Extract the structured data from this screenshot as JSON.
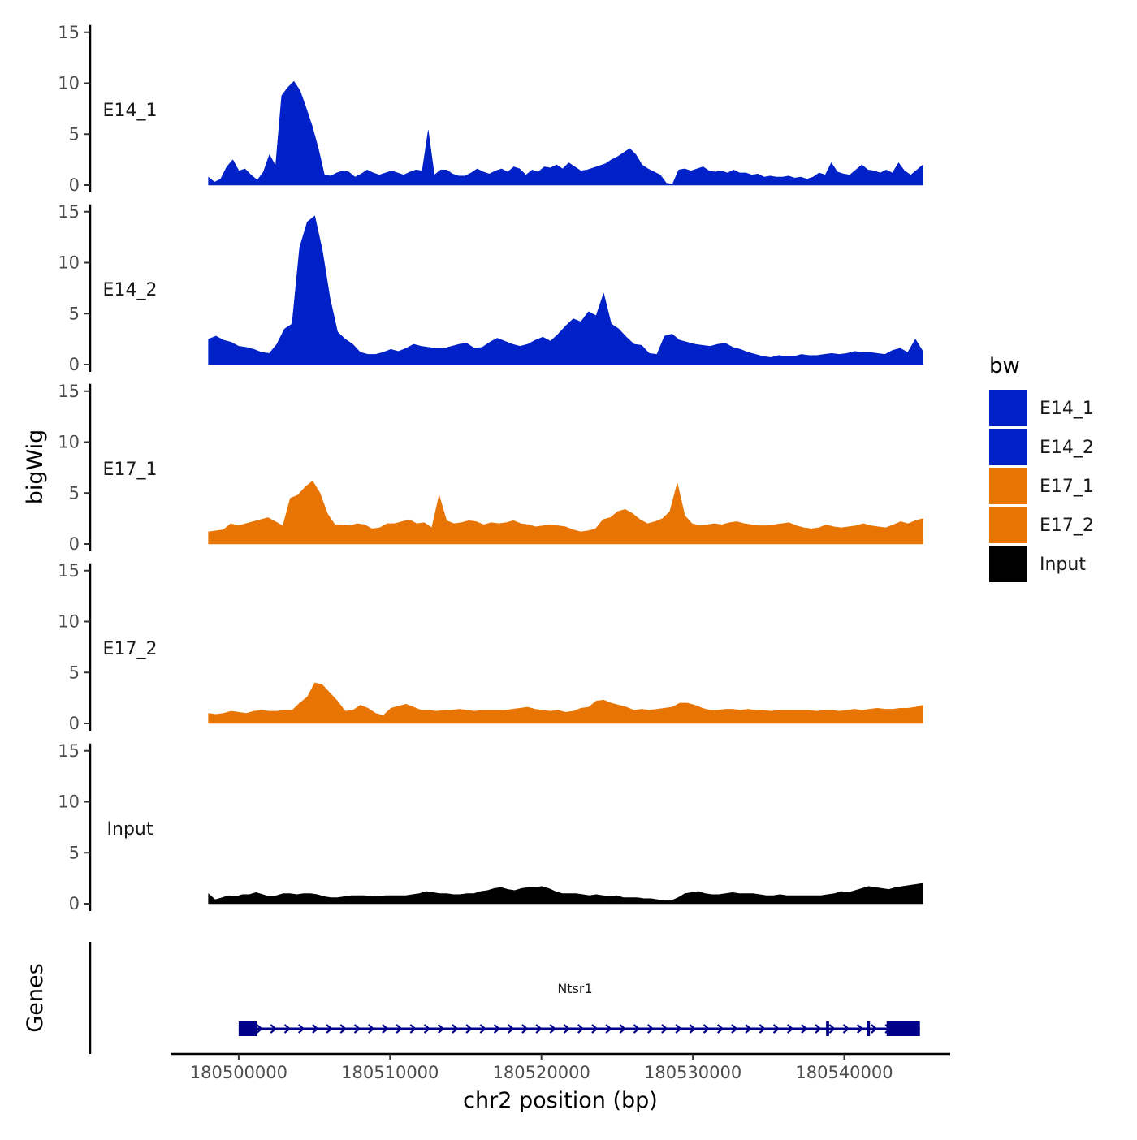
{
  "chart_data": {
    "type": "area",
    "y_axis_title": "bigWig",
    "genes_axis_title": "Genes",
    "x_axis_title": "chr2 position (bp)",
    "xlim": [
      180495500,
      180547000
    ],
    "x_ticks": [
      180500000,
      180510000,
      180520000,
      180530000,
      180540000
    ],
    "x_tick_labels": [
      "180500000",
      "180510000",
      "180520000",
      "180530000",
      "180540000"
    ],
    "ylim": [
      0,
      15
    ],
    "y_ticks": [
      0,
      5,
      10,
      15
    ],
    "y_tick_labels": [
      "0",
      "5",
      "10",
      "15"
    ],
    "data_start": 180498000,
    "bin_size": 500,
    "legend": {
      "title": "bw",
      "entries": [
        {
          "label": "E14_1",
          "color": "#0020C8"
        },
        {
          "label": "E14_2",
          "color": "#0020C8"
        },
        {
          "label": "E17_1",
          "color": "#E87503"
        },
        {
          "label": "E17_2",
          "color": "#E87503"
        },
        {
          "label": "Input",
          "color": "#000000"
        }
      ]
    },
    "series": [
      {
        "name": "E14_1",
        "color": "#0020C8",
        "values": [
          0.8,
          0.3,
          0.6,
          1.8,
          2.5,
          1.4,
          1.6,
          1.0,
          0.5,
          1.3,
          3.0,
          1.9,
          8.8,
          9.6,
          10.2,
          9.3,
          7.6,
          5.8,
          3.6,
          1.0,
          0.9,
          1.2,
          1.4,
          1.3,
          0.8,
          1.1,
          1.5,
          1.2,
          1.0,
          1.2,
          1.4,
          1.2,
          1.0,
          1.3,
          1.5,
          1.4,
          5.4,
          1.0,
          1.5,
          1.5,
          1.1,
          0.9,
          0.9,
          1.2,
          1.6,
          1.3,
          1.1,
          1.4,
          1.6,
          1.3,
          1.8,
          1.6,
          1.0,
          1.5,
          1.3,
          1.8,
          1.7,
          2.0,
          1.6,
          2.2,
          1.8,
          1.4,
          1.5,
          1.7,
          1.9,
          2.1,
          2.5,
          2.8,
          3.2,
          3.6,
          3.0,
          2.0,
          1.6,
          1.3,
          1.0,
          0.2,
          0.1,
          1.5,
          1.6,
          1.4,
          1.6,
          1.8,
          1.4,
          1.3,
          1.4,
          1.2,
          1.5,
          1.2,
          1.2,
          1.0,
          1.1,
          0.8,
          0.9,
          0.8,
          0.8,
          0.9,
          0.7,
          0.8,
          0.6,
          0.8,
          1.2,
          1.0,
          2.2,
          1.3,
          1.1,
          1.0,
          1.5,
          2.0,
          1.5,
          1.4,
          1.2,
          1.5,
          1.2,
          2.2,
          1.4,
          1.0,
          1.5,
          2.0
        ]
      },
      {
        "name": "E14_2",
        "color": "#0020C8",
        "values": [
          2.5,
          2.8,
          2.4,
          2.2,
          1.8,
          1.7,
          1.5,
          1.2,
          1.1,
          2.0,
          3.5,
          4.0,
          11.5,
          14.0,
          14.6,
          11.2,
          6.5,
          3.2,
          2.5,
          2.0,
          1.2,
          1.0,
          1.0,
          1.2,
          1.5,
          1.3,
          1.6,
          2.0,
          1.8,
          1.7,
          1.6,
          1.6,
          1.8,
          2.0,
          2.1,
          1.6,
          1.7,
          2.2,
          2.6,
          2.3,
          2.0,
          1.8,
          2.0,
          2.4,
          2.7,
          2.3,
          3.0,
          3.8,
          4.5,
          4.2,
          5.2,
          4.8,
          7.0,
          4.0,
          3.5,
          2.7,
          2.0,
          1.9,
          1.1,
          1.0,
          2.8,
          3.0,
          2.4,
          2.2,
          2.0,
          1.9,
          1.8,
          2.0,
          2.1,
          1.7,
          1.5,
          1.2,
          1.0,
          0.8,
          0.7,
          0.9,
          0.8,
          0.8,
          1.0,
          0.9,
          0.9,
          1.0,
          1.1,
          1.0,
          1.1,
          1.3,
          1.2,
          1.2,
          1.1,
          1.0,
          1.4,
          1.6,
          1.2,
          2.5,
          1.3
        ]
      },
      {
        "name": "E17_1",
        "color": "#E87503",
        "values": [
          1.2,
          1.3,
          1.4,
          2.0,
          1.8,
          2.0,
          2.2,
          2.4,
          2.6,
          2.2,
          1.8,
          4.5,
          4.8,
          5.6,
          6.2,
          5.0,
          3.0,
          1.9,
          1.9,
          1.8,
          2.0,
          1.9,
          1.5,
          1.6,
          2.0,
          2.0,
          2.2,
          2.4,
          2.0,
          2.1,
          1.6,
          4.8,
          2.3,
          2.0,
          2.1,
          2.3,
          2.2,
          1.9,
          2.1,
          2.0,
          2.1,
          2.3,
          2.0,
          1.9,
          1.7,
          1.8,
          1.9,
          1.8,
          1.7,
          1.4,
          1.2,
          1.3,
          1.5,
          2.4,
          2.6,
          3.2,
          3.4,
          3.0,
          2.4,
          2.0,
          2.2,
          2.5,
          3.2,
          6.0,
          2.8,
          2.0,
          1.8,
          1.9,
          2.0,
          1.9,
          2.1,
          2.2,
          2.0,
          1.9,
          1.8,
          1.8,
          1.9,
          2.0,
          2.1,
          1.8,
          1.6,
          1.5,
          1.6,
          1.9,
          1.7,
          1.6,
          1.7,
          1.8,
          2.0,
          1.8,
          1.7,
          1.6,
          1.9,
          2.2,
          2.0,
          2.3,
          2.5
        ]
      },
      {
        "name": "E17_2",
        "color": "#E87503",
        "values": [
          1.0,
          0.9,
          1.0,
          1.2,
          1.1,
          1.0,
          1.2,
          1.3,
          1.2,
          1.2,
          1.3,
          1.3,
          2.0,
          2.6,
          4.0,
          3.8,
          3.0,
          2.2,
          1.2,
          1.3,
          1.8,
          1.5,
          1.0,
          0.8,
          1.5,
          1.7,
          1.9,
          1.6,
          1.3,
          1.3,
          1.2,
          1.3,
          1.3,
          1.4,
          1.3,
          1.2,
          1.3,
          1.3,
          1.3,
          1.3,
          1.4,
          1.5,
          1.6,
          1.4,
          1.3,
          1.2,
          1.3,
          1.1,
          1.2,
          1.5,
          1.6,
          2.2,
          2.3,
          2.0,
          1.8,
          1.6,
          1.3,
          1.4,
          1.3,
          1.4,
          1.5,
          1.6,
          2.0,
          2.0,
          1.8,
          1.5,
          1.3,
          1.3,
          1.4,
          1.4,
          1.3,
          1.4,
          1.3,
          1.3,
          1.2,
          1.3,
          1.3,
          1.3,
          1.3,
          1.3,
          1.2,
          1.3,
          1.3,
          1.2,
          1.3,
          1.4,
          1.3,
          1.4,
          1.5,
          1.4,
          1.4,
          1.5,
          1.5,
          1.6,
          1.8
        ]
      },
      {
        "name": "Input",
        "color": "#000000",
        "values": [
          1.0,
          0.4,
          0.6,
          0.8,
          0.7,
          0.9,
          0.9,
          1.1,
          0.9,
          0.7,
          0.8,
          1.0,
          1.0,
          0.9,
          1.0,
          1.0,
          0.9,
          0.7,
          0.6,
          0.6,
          0.7,
          0.8,
          0.8,
          0.8,
          0.7,
          0.7,
          0.8,
          0.8,
          0.8,
          0.8,
          0.9,
          1.0,
          1.2,
          1.1,
          1.0,
          1.0,
          0.9,
          0.9,
          1.0,
          1.0,
          1.2,
          1.3,
          1.5,
          1.6,
          1.4,
          1.3,
          1.5,
          1.6,
          1.6,
          1.7,
          1.5,
          1.2,
          1.0,
          1.0,
          1.0,
          0.9,
          0.8,
          0.9,
          0.8,
          0.7,
          0.8,
          0.6,
          0.6,
          0.6,
          0.5,
          0.5,
          0.4,
          0.3,
          0.3,
          0.6,
          1.0,
          1.1,
          1.2,
          1.0,
          0.9,
          0.9,
          1.0,
          1.1,
          1.0,
          1.0,
          1.0,
          0.9,
          0.8,
          0.8,
          0.9,
          0.8,
          0.8,
          0.8,
          0.8,
          0.8,
          0.8,
          0.9,
          1.0,
          1.2,
          1.1,
          1.3,
          1.5,
          1.7,
          1.6,
          1.5,
          1.4,
          1.6,
          1.7,
          1.8,
          1.9,
          2.0
        ]
      }
    ],
    "gene": {
      "name": "Ntsr1",
      "strand": "+",
      "start": 180500000,
      "end": 180545000,
      "color": "#00008B",
      "exons": [
        [
          180500000,
          180501200
        ],
        [
          180538800,
          180539000
        ],
        [
          180541500,
          180541700
        ],
        [
          180542800,
          180545000
        ]
      ]
    }
  }
}
